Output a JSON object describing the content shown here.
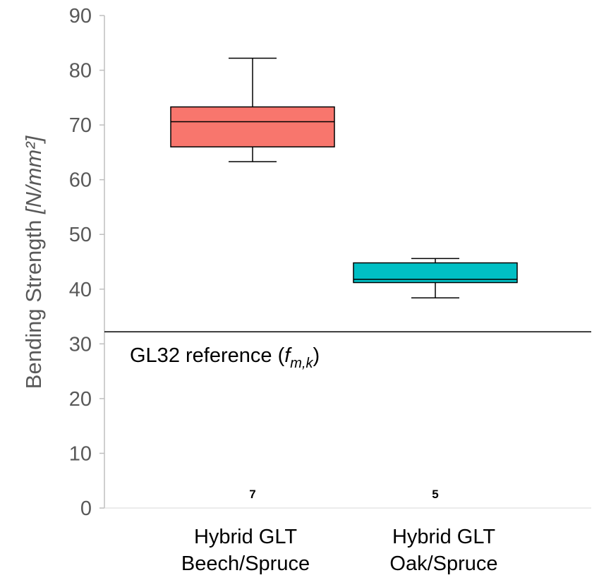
{
  "chart_data": {
    "type": "box",
    "ylabel_main": "Bending Strength ",
    "ylabel_unit": "[N/mm²]",
    "ylim": [
      0,
      90
    ],
    "yticks": [
      0,
      10,
      20,
      30,
      40,
      50,
      60,
      70,
      80,
      90
    ],
    "grid": false,
    "categories": [
      [
        "Hybrid GLT",
        "Beech/Spruce"
      ],
      [
        "Hybrid GLT",
        "Oak/Spruce"
      ]
    ],
    "boxes": [
      {
        "min": 63.3,
        "q1": 66.0,
        "median": 70.6,
        "q3": 73.3,
        "max": 82.2,
        "n": "7",
        "color": "#F8766D"
      },
      {
        "min": 38.4,
        "q1": 41.2,
        "median": 41.8,
        "q3": 44.8,
        "max": 45.6,
        "n": "5",
        "color": "#00BFC4"
      }
    ],
    "reference": {
      "value": 32.2,
      "label_prefix": "GL32 reference (",
      "label_symbol": "f",
      "label_sub": "m,k",
      "label_suffix": ")"
    }
  }
}
